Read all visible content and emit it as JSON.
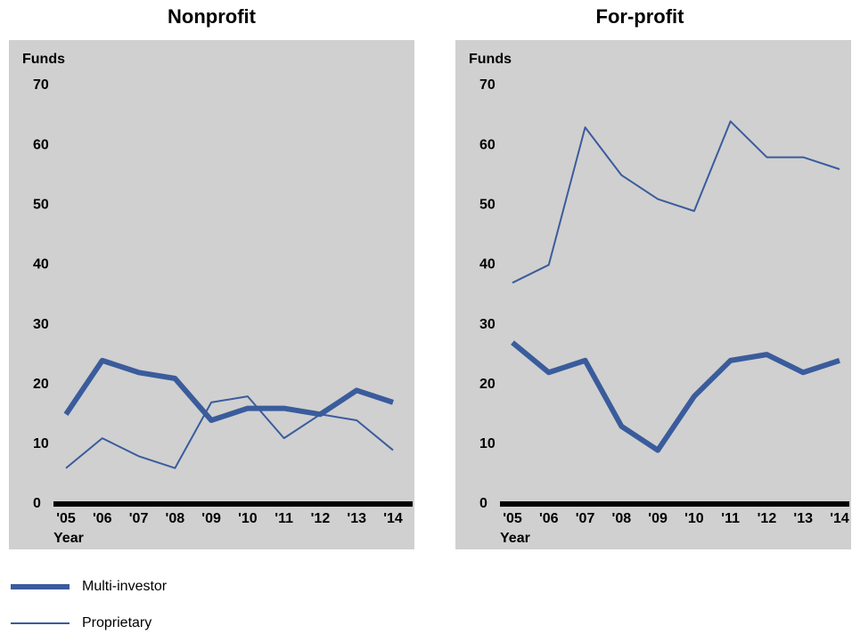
{
  "chart_data": [
    {
      "type": "line",
      "title": "Nonprofit",
      "y_label": "Funds",
      "x_label": "Year",
      "categories": [
        "'05",
        "'06",
        "'07",
        "'08",
        "'09",
        "'10",
        "'11",
        "'12",
        "'13",
        "'14"
      ],
      "ylim": [
        0,
        70
      ],
      "yticks": [
        0,
        10,
        20,
        30,
        40,
        50,
        60,
        70
      ],
      "series": [
        {
          "name": "Multi-investor",
          "color": "#3a5c9c",
          "values": [
            15,
            24,
            22,
            21,
            14,
            16,
            16,
            15,
            19,
            17
          ]
        },
        {
          "name": "Proprietary",
          "color": "#3a5c9c",
          "values": [
            6,
            11,
            8,
            6,
            17,
            18,
            11,
            15,
            14,
            9
          ]
        }
      ]
    },
    {
      "type": "line",
      "title": "For-profit",
      "y_label": "Funds",
      "x_label": "Year",
      "categories": [
        "'05",
        "'06",
        "'07",
        "'08",
        "'09",
        "'10",
        "'11",
        "'12",
        "'13",
        "'14"
      ],
      "ylim": [
        0,
        70
      ],
      "yticks": [
        0,
        10,
        20,
        30,
        40,
        50,
        60,
        70
      ],
      "series": [
        {
          "name": "Multi-investor",
          "color": "#3a5c9c",
          "values": [
            27,
            22,
            24,
            13,
            9,
            18,
            24,
            25,
            22,
            24
          ]
        },
        {
          "name": "Proprietary",
          "color": "#3a5c9c",
          "values": [
            37,
            40,
            63,
            55,
            51,
            49,
            64,
            58,
            58,
            56
          ]
        }
      ]
    }
  ]
}
